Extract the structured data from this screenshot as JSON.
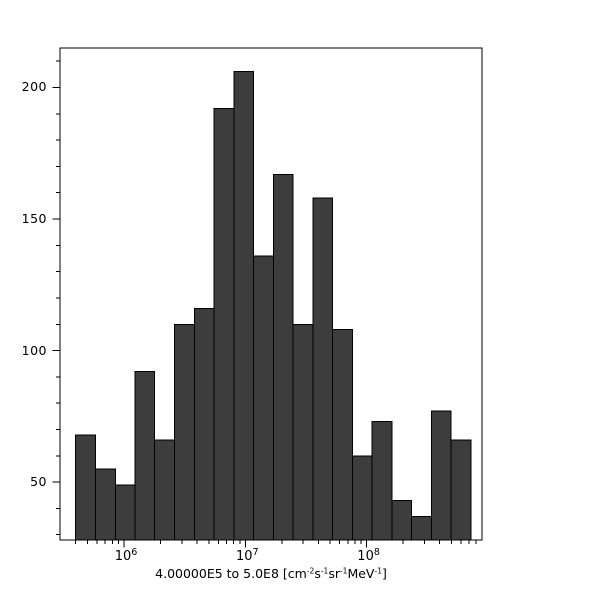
{
  "figure": {
    "background": "#ffffff"
  },
  "chart_data": {
    "type": "histogram",
    "title": "",
    "xlabel_prefix": "4.00000E5 to 5.0E8 [",
    "xlabel_units": [
      {
        "text": "cm",
        "exp": "-2"
      },
      {
        "text": "s",
        "exp": "-1"
      },
      {
        "text": "sr",
        "exp": "-1"
      },
      {
        "text": "MeV",
        "exp": "-1"
      }
    ],
    "xlabel_suffix": "]",
    "ylabel": "",
    "x_scale": "log",
    "y_scale": "linear",
    "grid": false,
    "legend_position": "none",
    "bin_edges": [
      400000,
      582000,
      847000,
      1230000,
      1790000,
      2610000,
      3800000,
      5530000,
      8040000,
      11700000,
      17000000,
      24800000,
      36100000,
      52500000,
      76400000,
      111000000,
      162000000,
      235000000,
      342000000,
      498000000,
      724000000
    ],
    "counts": [
      68,
      55,
      49,
      92,
      66,
      110,
      116,
      192,
      206,
      136,
      167,
      110,
      158,
      108,
      60,
      73,
      43,
      37,
      77,
      66
    ],
    "xlim": [
      296700,
      894100000
    ],
    "ylim": [
      28,
      215
    ],
    "x_major_ticks": [
      {
        "value": 1000000,
        "base": "10",
        "exp": "6"
      },
      {
        "value": 10000000,
        "base": "10",
        "exp": "7"
      },
      {
        "value": 100000000,
        "base": "10",
        "exp": "8"
      }
    ],
    "y_major_ticks": [
      50,
      100,
      150,
      200
    ],
    "y_minor_step": 10,
    "colors": {
      "bar_fill": "#3d3d3d",
      "bar_edge": "#000000",
      "axis": "#000000",
      "text": "#000000"
    }
  }
}
